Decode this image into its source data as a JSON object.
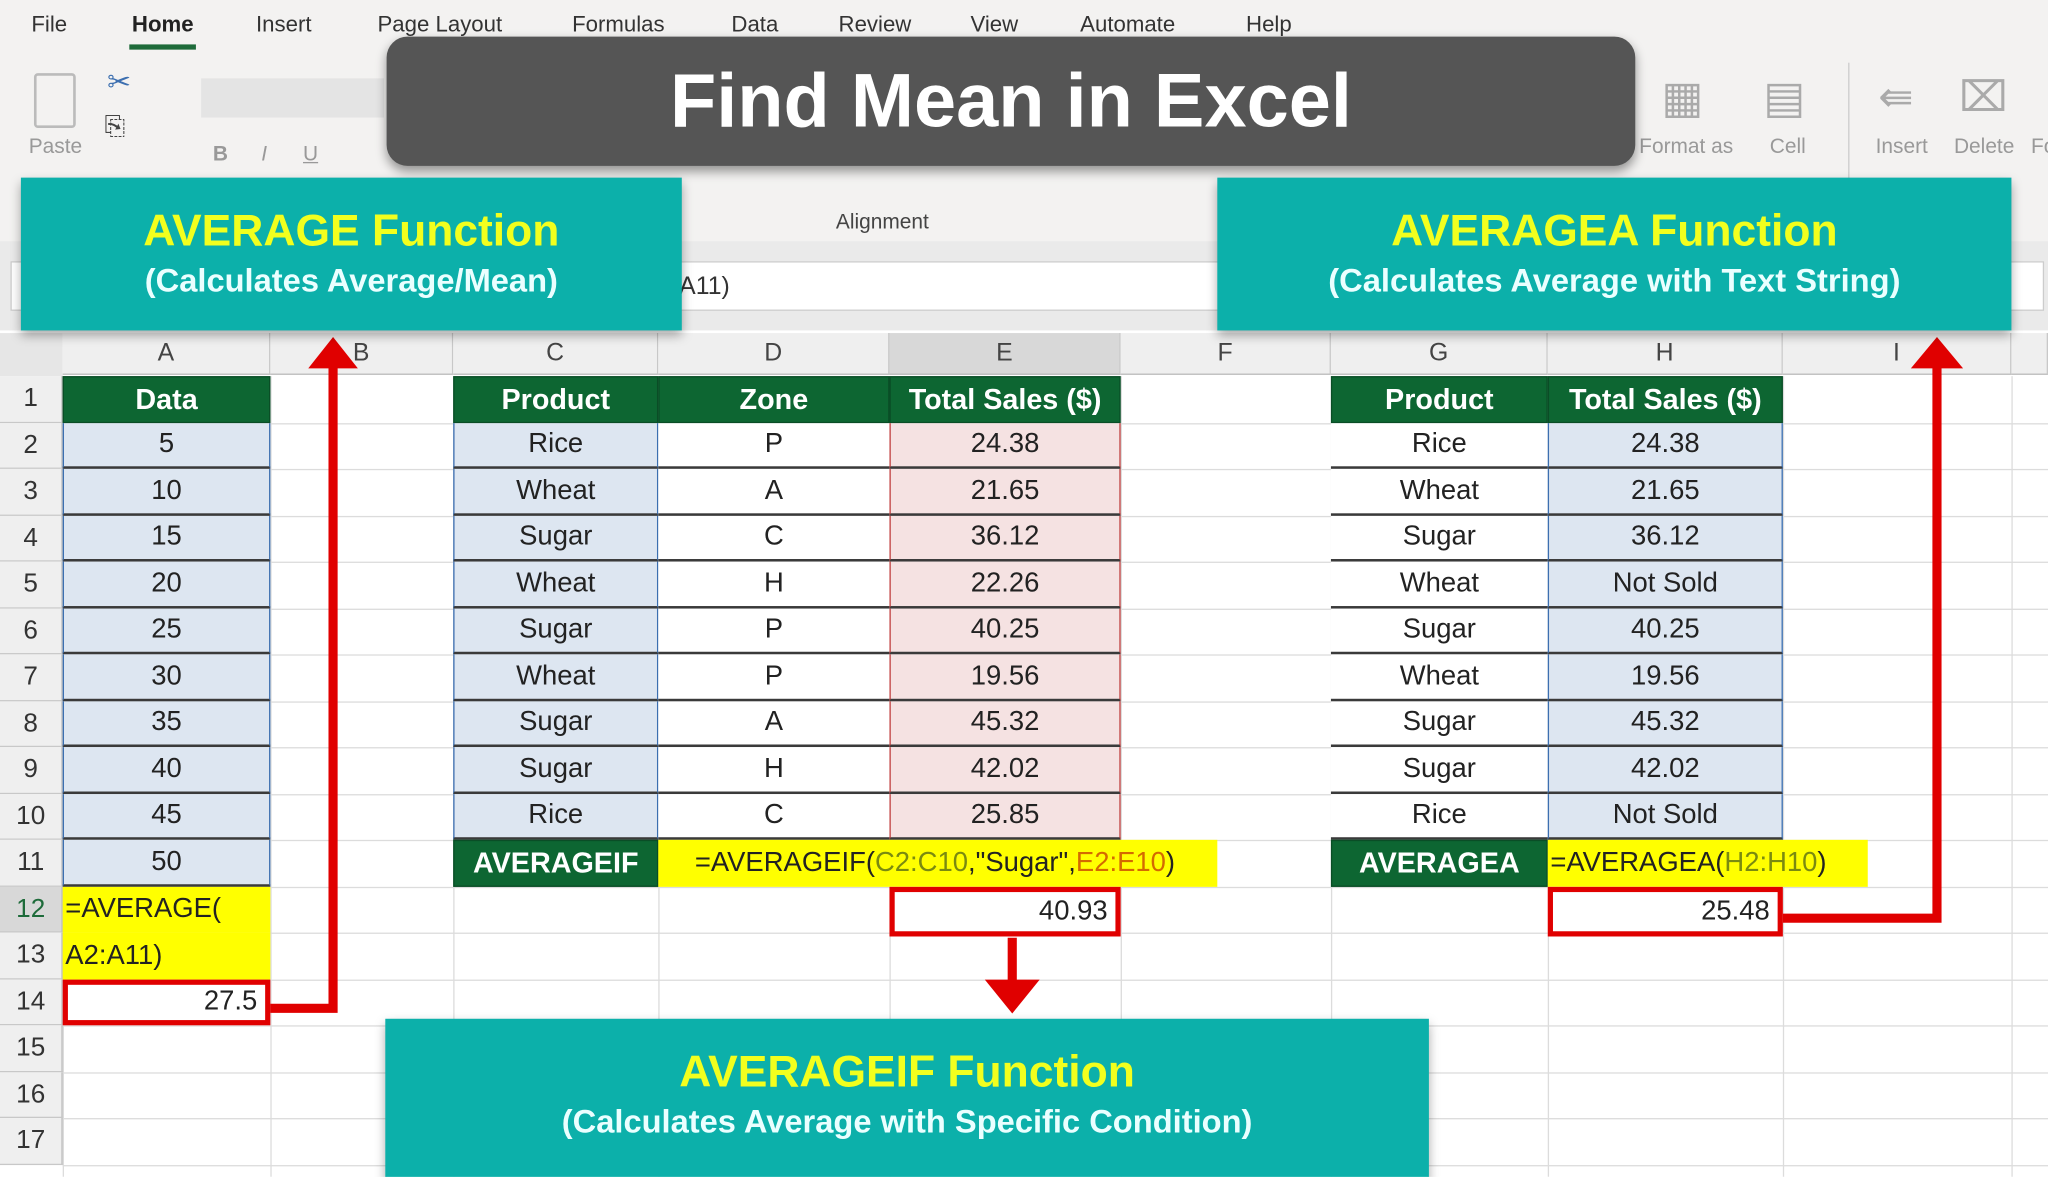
{
  "ribbon": {
    "tabs": [
      "File",
      "Home",
      "Insert",
      "Page Layout",
      "Formulas",
      "Data",
      "Review",
      "View",
      "Automate",
      "Help"
    ],
    "active_tab": "Home",
    "paste_label": "Paste",
    "alignment_label": "Alignment",
    "format_as_table_label": "Format as",
    "cell_styles_label": "Cell",
    "insert_label": "Insert",
    "delete_label": "Delete",
    "format_label": "Fo",
    "bold": "B",
    "italic": "I",
    "underline": "U"
  },
  "formula_bar": {
    "visible_text": "A11)"
  },
  "columns": [
    "A",
    "B",
    "C",
    "D",
    "E",
    "F",
    "G",
    "H",
    "I"
  ],
  "selected_column": "E",
  "rows": [
    "1",
    "2",
    "3",
    "4",
    "5",
    "6",
    "7",
    "8",
    "9",
    "10",
    "11",
    "12",
    "13",
    "14",
    "15",
    "16",
    "17"
  ],
  "selected_row": "12",
  "average_table": {
    "header": "Data",
    "values": [
      "5",
      "10",
      "15",
      "20",
      "25",
      "30",
      "35",
      "40",
      "45",
      "50"
    ],
    "formula_line1": "=AVERAGE(",
    "formula_line2": "A2:A11)",
    "result": "27.5"
  },
  "averageif_table": {
    "headers": [
      "Product",
      "Zone",
      "Total Sales ($)"
    ],
    "rows": [
      [
        "Rice",
        "P",
        "24.38"
      ],
      [
        "Wheat",
        "A",
        "21.65"
      ],
      [
        "Sugar",
        "C",
        "36.12"
      ],
      [
        "Wheat",
        "H",
        "22.26"
      ],
      [
        "Sugar",
        "P",
        "40.25"
      ],
      [
        "Wheat",
        "P",
        "19.56"
      ],
      [
        "Sugar",
        "A",
        "45.32"
      ],
      [
        "Sugar",
        "H",
        "42.02"
      ],
      [
        "Rice",
        "C",
        "25.85"
      ]
    ],
    "label": "AVERAGEIF",
    "formula_parts": [
      "=AVERAGEIF(",
      "C2:C10",
      ",\"Sugar\",",
      "E2:E10",
      ")"
    ],
    "result": "40.93"
  },
  "averagea_table": {
    "headers": [
      "Product",
      "Total Sales ($)"
    ],
    "rows": [
      [
        "Rice",
        "24.38"
      ],
      [
        "Wheat",
        "21.65"
      ],
      [
        "Sugar",
        "36.12"
      ],
      [
        "Wheat",
        "Not Sold"
      ],
      [
        "Sugar",
        "40.25"
      ],
      [
        "Wheat",
        "19.56"
      ],
      [
        "Sugar",
        "45.32"
      ],
      [
        "Sugar",
        "42.02"
      ],
      [
        "Rice",
        "Not Sold"
      ]
    ],
    "label": "AVERAGEA",
    "formula_parts": [
      "=AVERAGEA(",
      "H2:H10",
      ")"
    ],
    "result": "25.48"
  },
  "overlay": {
    "title": "Find Mean in Excel",
    "average_box": {
      "title": "AVERAGE Function",
      "subtitle": "(Calculates Average/Mean)"
    },
    "averagea_box": {
      "title": "AVERAGEA Function",
      "subtitle": "(Calculates Average with Text String)"
    },
    "averageif_box": {
      "title": "AVERAGEIF Function",
      "subtitle": "(Calculates Average with Specific Condition)"
    }
  },
  "colors": {
    "header_green": "#0d6632",
    "teal": "#0cb0aa",
    "highlight_yellow": "#ffff00",
    "arrow_red": "#e00000",
    "title_gray": "#555555"
  }
}
